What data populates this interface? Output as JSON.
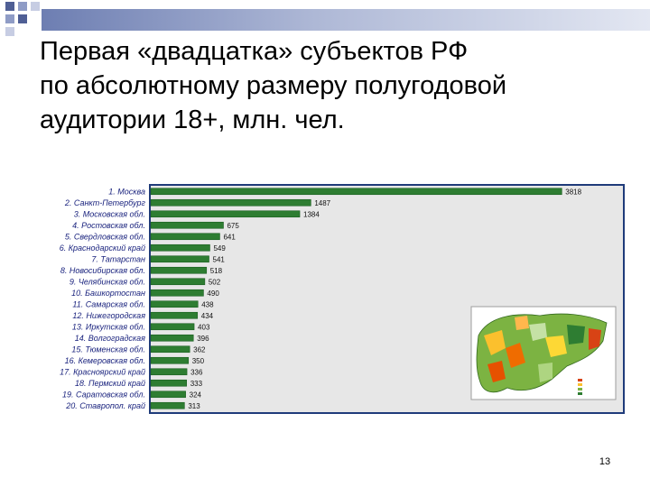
{
  "title": {
    "lines": [
      "Первая «двадцатка» субъектов РФ",
      "по абсолютному размеру полугодовой",
      "аудитории 18+, млн. чел."
    ]
  },
  "page_number": "13",
  "colors": {
    "bar": "#2e7d32",
    "frame": "#1f3b7a",
    "plot_background": "#e7e7e7",
    "label": "#1a237e",
    "accent": "#6d7eb2"
  },
  "map_inset": {
    "icon": "russia-regions-map"
  },
  "chart_data": {
    "type": "bar",
    "orientation": "horizontal",
    "categories": [
      "1. Москва",
      "2. Санкт-Петербург",
      "3. Московская обл.",
      "4. Ростовская обл.",
      "5. Свердловская обл.",
      "6. Краснодарский край",
      "7. Татарстан",
      "8. Новосибирская обл.",
      "9. Челябинская обл.",
      "10. Башкортостан",
      "11. Самарская обл.",
      "12. Нижегородская",
      "13. Иркутская обл.",
      "14. Волгоградская",
      "15. Тюменская обл.",
      "16. Кемеровская обл.",
      "17. Красноярский край",
      "18. Пермский край",
      "19. Саратовская обл.",
      "20. Ставропол. край"
    ],
    "values": [
      3818,
      1487,
      1384,
      675,
      641,
      549,
      541,
      518,
      502,
      490,
      438,
      434,
      403,
      396,
      362,
      350,
      336,
      333,
      324,
      313
    ],
    "value_labels": [
      "3818",
      "1487",
      "1384",
      "675",
      "641",
      "549",
      "541",
      "518",
      "502",
      "490",
      "438",
      "434",
      "403",
      "396",
      "362",
      "350",
      "336",
      "333",
      "324",
      "313"
    ],
    "xlim": [
      0,
      4000
    ],
    "grid": false,
    "legend": "none"
  }
}
